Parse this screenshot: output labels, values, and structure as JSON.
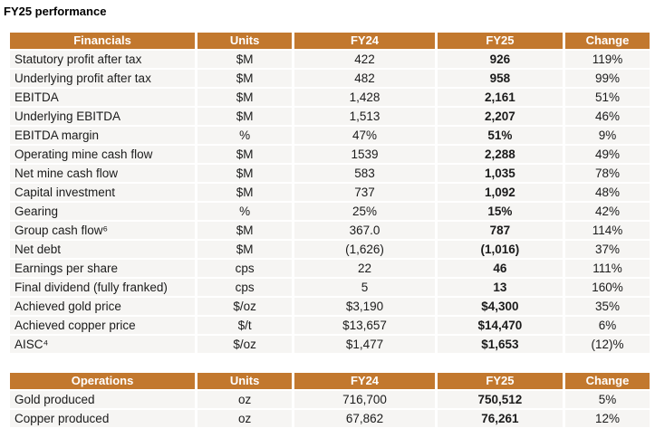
{
  "title": "FY25 performance",
  "financials": {
    "headers": [
      "Financials",
      "Units",
      "FY24",
      "FY25",
      "Change"
    ],
    "rows": [
      [
        "Statutory profit after tax",
        "$M",
        "422",
        "926",
        "119%"
      ],
      [
        "Underlying profit after tax",
        "$M",
        "482",
        "958",
        "99%"
      ],
      [
        "EBITDA",
        "$M",
        "1,428",
        "2,161",
        "51%"
      ],
      [
        "Underlying EBITDA",
        "$M",
        "1,513",
        "2,207",
        "46%"
      ],
      [
        "EBITDA margin",
        "%",
        "47%",
        "51%",
        "9%"
      ],
      [
        "Operating mine cash flow",
        "$M",
        "1539",
        "2,288",
        "49%"
      ],
      [
        "Net mine cash flow",
        "$M",
        "583",
        "1,035",
        "78%"
      ],
      [
        "Capital investment",
        "$M",
        "737",
        "1,092",
        "48%"
      ],
      [
        "Gearing",
        "%",
        "25%",
        "15%",
        "42%"
      ],
      [
        "Group cash flow⁶",
        "$M",
        "367.0",
        "787",
        "114%"
      ],
      [
        "Net debt",
        "$M",
        "(1,626)",
        "(1,016)",
        "37%"
      ],
      [
        "Earnings per share",
        "cps",
        "22",
        "46",
        "111%"
      ],
      [
        "Final dividend (fully franked)",
        "cps",
        "5",
        "13",
        "160%"
      ],
      [
        "Achieved gold price",
        "$/oz",
        "$3,190",
        "$4,300",
        "35%"
      ],
      [
        "Achieved copper price",
        "$/t",
        "$13,657",
        "$14,470",
        "6%"
      ],
      [
        "AISC⁴",
        "$/oz",
        "$1,477",
        "$1,653",
        "(12)%"
      ]
    ]
  },
  "operations": {
    "headers": [
      "Operations",
      "Units",
      "FY24",
      "FY25",
      "Change"
    ],
    "rows": [
      [
        "Gold produced",
        "oz",
        "716,700",
        "750,512",
        "5%"
      ],
      [
        "Copper produced",
        "oz",
        "67,862",
        "76,261",
        "12%"
      ]
    ]
  },
  "colors": {
    "header_background": "#C2782E",
    "header_text": "#FFFFFF",
    "cell_background": "#F6F5F3"
  }
}
